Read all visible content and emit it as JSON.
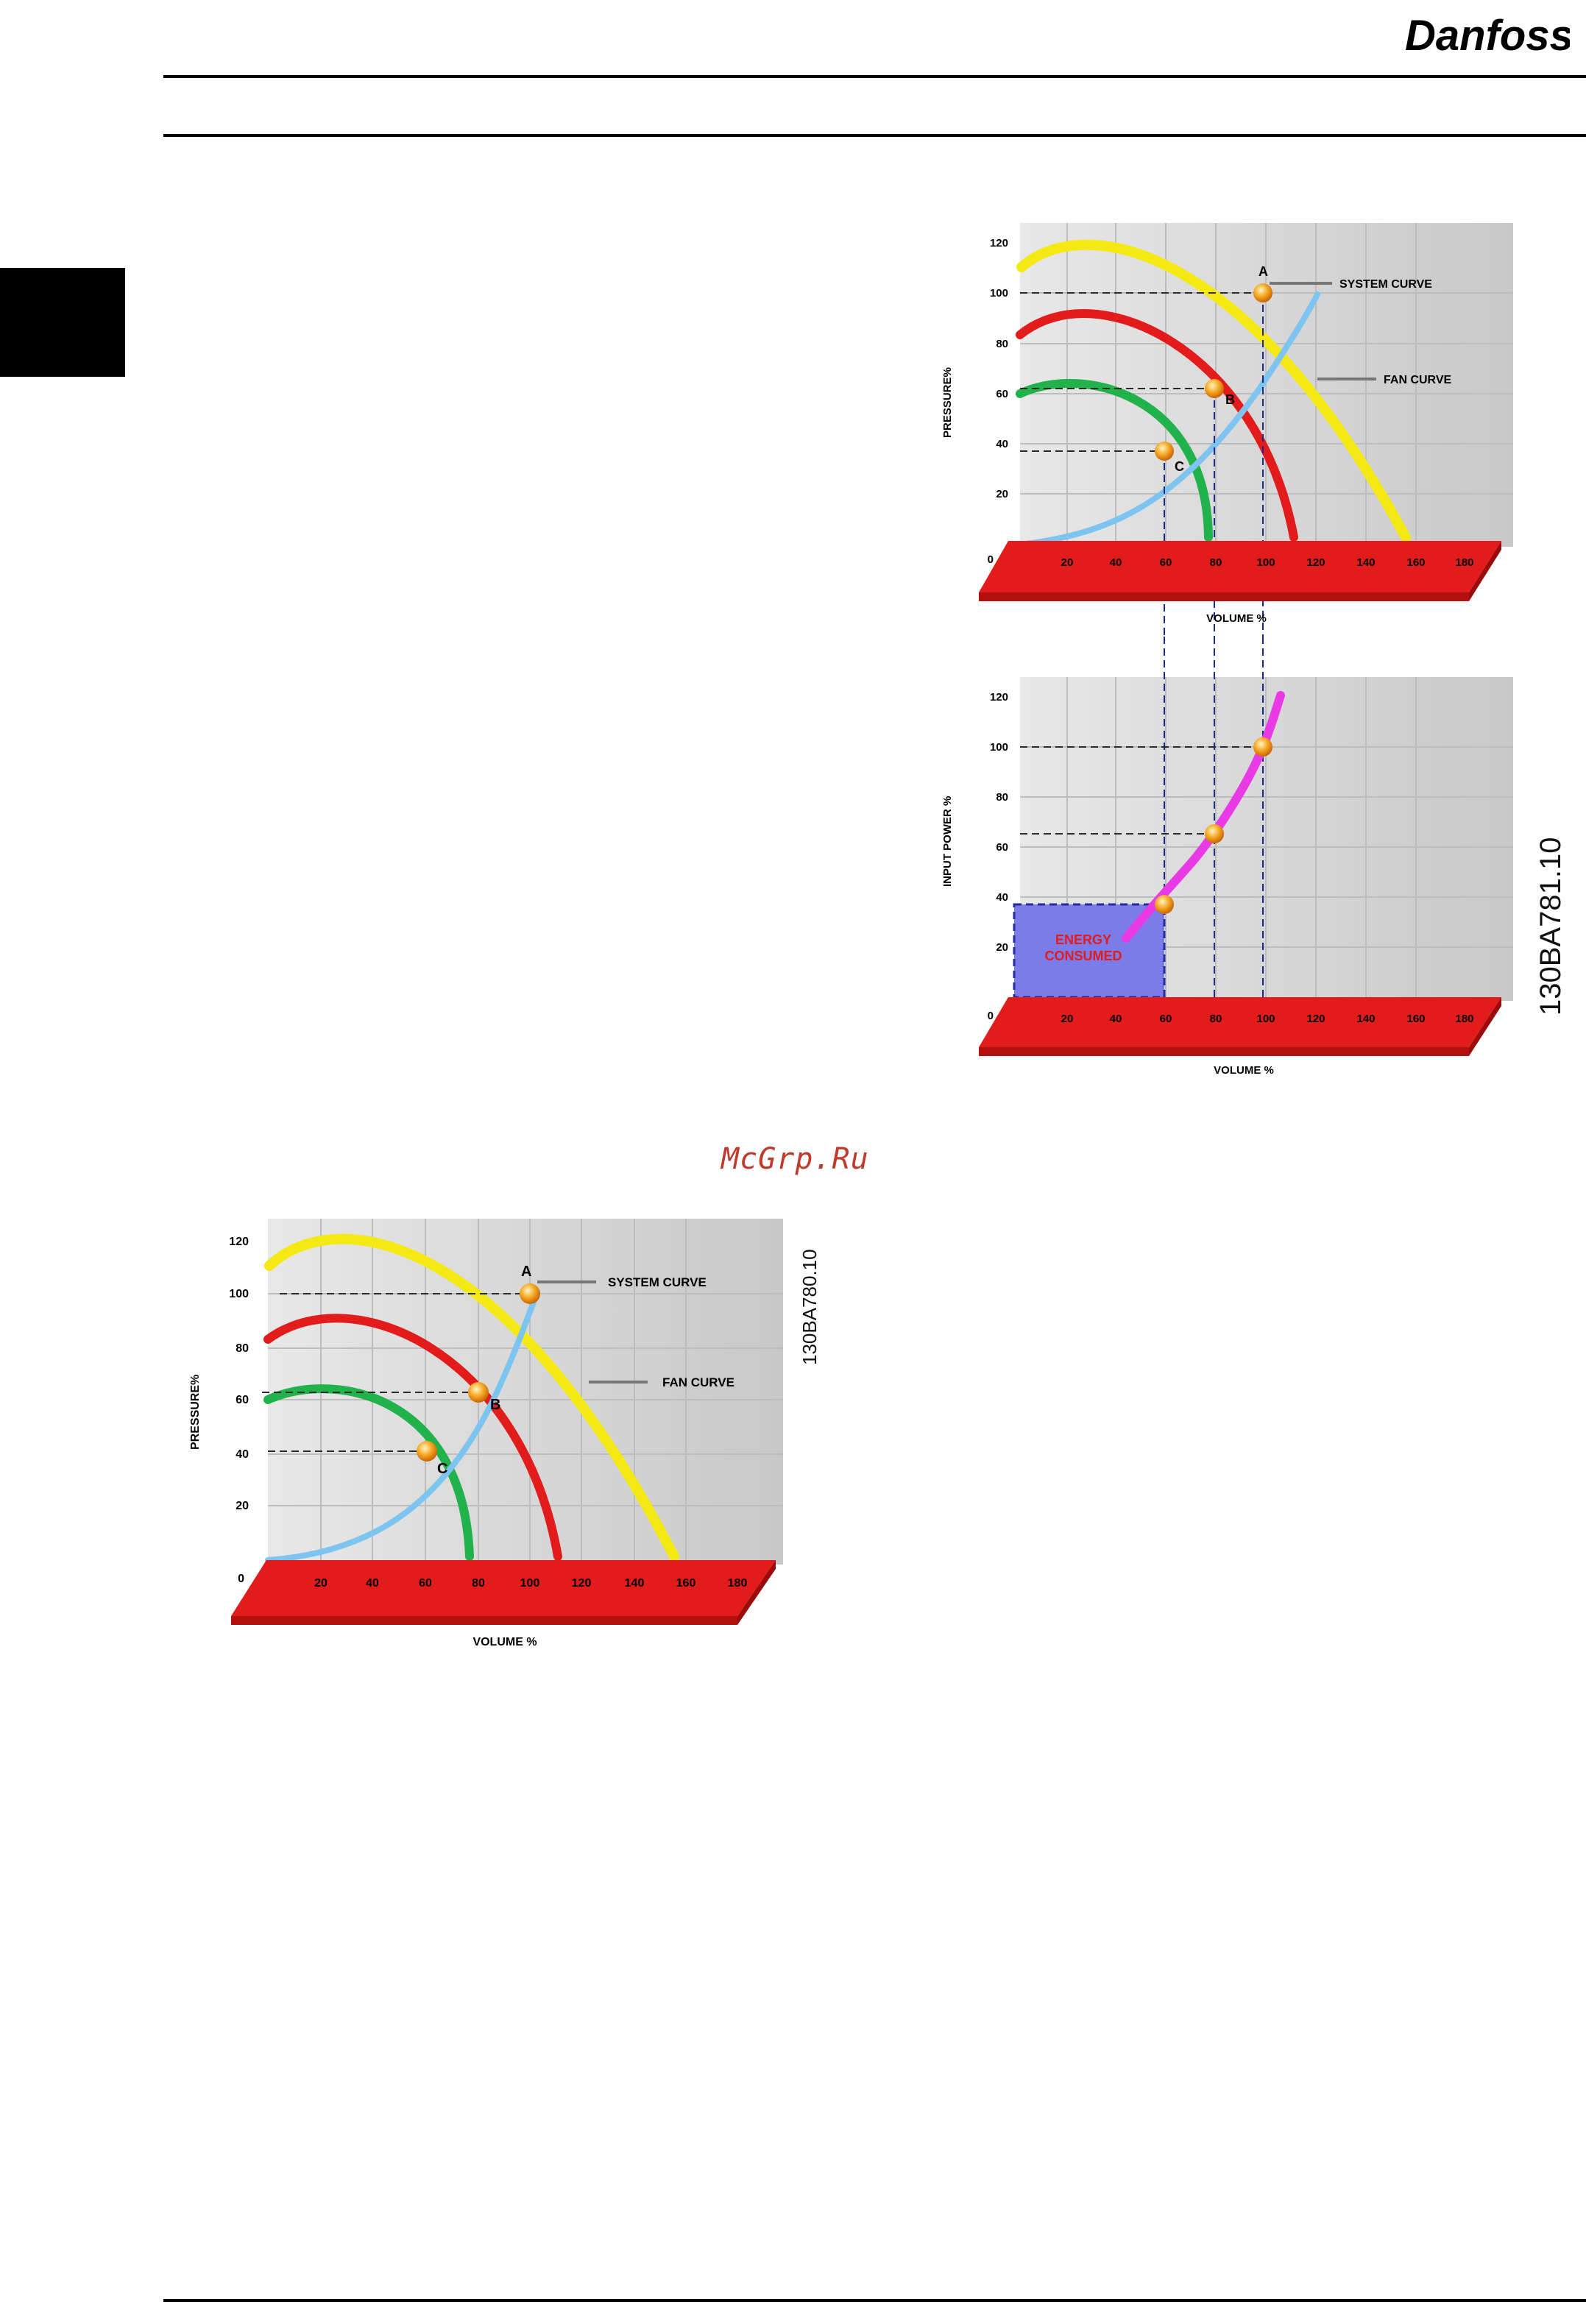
{
  "brand": {
    "logo_text": "Danfoss"
  },
  "watermark": "McGrp.Ru",
  "figure_top": {
    "code": "130BA781.10",
    "upper": {
      "ylabel": "PRESSURE%",
      "xlabel": "VOLUME %",
      "yticks": [
        "120",
        "100",
        "80",
        "60",
        "40",
        "20",
        "0"
      ],
      "xticks": [
        "20",
        "40",
        "60",
        "80",
        "100",
        "120",
        "140",
        "160",
        "180"
      ],
      "label_a": "A",
      "label_b": "B",
      "label_c": "C",
      "system_curve": "SYSTEM CURVE",
      "fan_curve": "FAN CURVE"
    },
    "lower": {
      "ylabel": "INPUT POWER %",
      "xlabel": "VOLUME %",
      "yticks": [
        "120",
        "100",
        "80",
        "60",
        "40",
        "20",
        "0"
      ],
      "xticks": [
        "20",
        "40",
        "60",
        "80",
        "100",
        "120",
        "140",
        "160",
        "180"
      ],
      "energy_line1": "ENERGY",
      "energy_line2": "CONSUMED"
    }
  },
  "figure_bottom": {
    "code": "130BA780.10",
    "ylabel": "PRESSURE%",
    "xlabel": "VOLUME %",
    "yticks": [
      "120",
      "100",
      "80",
      "60",
      "40",
      "20",
      "0"
    ],
    "xticks": [
      "20",
      "40",
      "60",
      "80",
      "100",
      "120",
      "140",
      "160",
      "180"
    ],
    "label_a": "A",
    "label_b": "B",
    "label_c": "C",
    "system_curve": "SYSTEM CURVE",
    "fan_curve": "FAN CURVE"
  },
  "chart_data": [
    {
      "type": "line",
      "title": "",
      "xlabel": "VOLUME %",
      "ylabel": "PRESSURE%",
      "xlim": [
        0,
        180
      ],
      "ylim": [
        0,
        120
      ],
      "points": [
        {
          "label": "A",
          "x": 100,
          "y": 100
        },
        {
          "label": "B",
          "x": 80,
          "y": 63
        },
        {
          "label": "C",
          "x": 60,
          "y": 36
        }
      ]
    },
    {
      "type": "line",
      "title": "",
      "xlabel": "VOLUME %",
      "ylabel": "INPUT POWER %",
      "xlim": [
        0,
        180
      ],
      "ylim": [
        0,
        120
      ],
      "points": [
        {
          "x": 60,
          "y": 36
        },
        {
          "x": 80,
          "y": 64
        },
        {
          "x": 100,
          "y": 100
        }
      ]
    },
    {
      "type": "line",
      "title": "",
      "xlabel": "VOLUME %",
      "ylabel": "PRESSURE%",
      "xlim": [
        0,
        180
      ],
      "ylim": [
        0,
        120
      ],
      "points": [
        {
          "label": "A",
          "x": 100,
          "y": 100
        },
        {
          "label": "B",
          "x": 80,
          "y": 63
        },
        {
          "label": "C",
          "x": 60,
          "y": 36
        }
      ]
    }
  ]
}
